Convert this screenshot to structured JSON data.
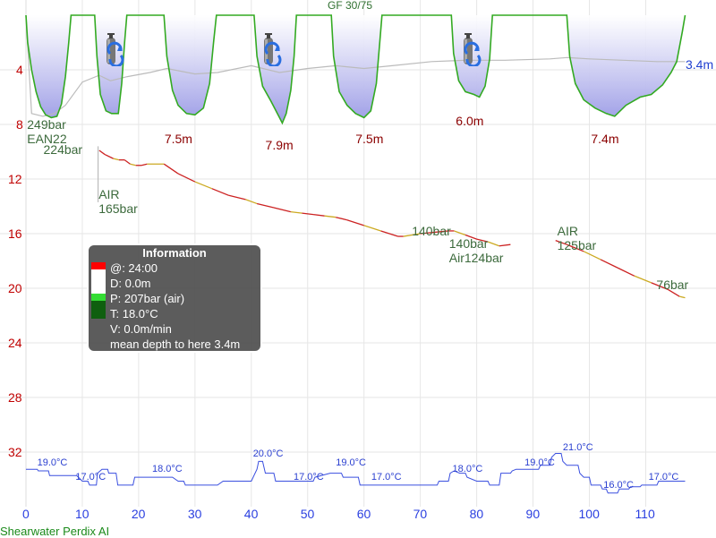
{
  "header": {
    "gradient_factors": "GF 30/75"
  },
  "footer": {
    "dive_computer": "Shearwater Perdix AI"
  },
  "info_box": {
    "title": "Information",
    "time": "@: 24:00",
    "depth": "D: 0.0m",
    "pressure": "P: 207bar (air)",
    "temperature": "T: 18.0°C",
    "velocity": "V: 0.0m/min",
    "mean_depth": "mean depth to here 3.4m"
  },
  "colors": {
    "grid": "#e6e6e6",
    "depth_profile": "#33aa22",
    "depth_fill_top": "#ffffff",
    "depth_fill_bottom": "#9c9ce6",
    "pressure_line": "#cc2222",
    "pressure_line_alt": "#ccaa22",
    "temperature_line": "#3a4fdf",
    "mean_depth_line": "#bbbbbb",
    "depth_axis": "#c00000",
    "time_axis": "#2a3fe0"
  },
  "icons": {
    "tank_change": "gas-tank-icon"
  },
  "chart_data": {
    "type": "line",
    "x_unit": "min",
    "y_unit": "m",
    "xlim": [
      0,
      117
    ],
    "ylim": [
      0,
      34
    ],
    "x_ticks": [
      0,
      10,
      20,
      30,
      40,
      50,
      60,
      70,
      80,
      90,
      100,
      110
    ],
    "y_ticks": [
      4,
      8,
      12,
      16,
      20,
      24,
      28,
      32
    ],
    "mean_depth_value": "3.4m",
    "depth_profile": {
      "name": "depth",
      "points": [
        [
          0,
          0
        ],
        [
          0.3,
          2
        ],
        [
          1,
          4
        ],
        [
          1.8,
          5.6
        ],
        [
          2.6,
          6.7
        ],
        [
          3.5,
          7.3
        ],
        [
          4.5,
          7.5
        ],
        [
          5.5,
          7.4
        ],
        [
          6.3,
          6.5
        ],
        [
          7,
          4.5
        ],
        [
          7.6,
          2
        ],
        [
          8,
          0
        ],
        [
          12.2,
          0
        ],
        [
          12.6,
          3
        ],
        [
          13.2,
          5.8
        ],
        [
          14.2,
          7
        ],
        [
          15.2,
          7.2
        ],
        [
          16.4,
          7.2
        ],
        [
          17,
          5
        ],
        [
          17.5,
          2
        ],
        [
          17.9,
          0
        ],
        [
          24.5,
          0
        ],
        [
          25,
          3
        ],
        [
          26,
          5.5
        ],
        [
          27,
          6.6
        ],
        [
          28.5,
          7.2
        ],
        [
          30,
          7.3
        ],
        [
          31.5,
          6.8
        ],
        [
          32.6,
          5
        ],
        [
          33.3,
          2
        ],
        [
          33.8,
          0
        ],
        [
          40.5,
          0
        ],
        [
          41,
          3
        ],
        [
          42,
          5.2
        ],
        [
          43.5,
          6.3
        ],
        [
          45,
          7.5
        ],
        [
          45.5,
          7.9
        ],
        [
          46.2,
          7.2
        ],
        [
          47,
          5.5
        ],
        [
          47.6,
          3
        ],
        [
          48,
          0
        ],
        [
          54.2,
          0
        ],
        [
          54.6,
          3
        ],
        [
          55.6,
          5.6
        ],
        [
          57,
          6.6
        ],
        [
          58.5,
          7.2
        ],
        [
          60,
          7.5
        ],
        [
          61.2,
          7
        ],
        [
          62.2,
          5
        ],
        [
          62.8,
          2
        ],
        [
          63.2,
          0
        ],
        [
          75.5,
          0
        ],
        [
          75.9,
          2.8
        ],
        [
          76.8,
          4.8
        ],
        [
          78,
          5.6
        ],
        [
          79.5,
          5.8
        ],
        [
          80.5,
          6
        ],
        [
          81.5,
          5.2
        ],
        [
          82.3,
          3.2
        ],
        [
          82.8,
          0
        ],
        [
          96,
          0
        ],
        [
          96.5,
          3
        ],
        [
          97.5,
          5
        ],
        [
          99,
          6.2
        ],
        [
          101,
          6.8
        ],
        [
          103,
          7.2
        ],
        [
          104.5,
          7.4
        ],
        [
          106.5,
          6.6
        ],
        [
          109,
          6
        ],
        [
          111,
          5.8
        ],
        [
          113,
          5.1
        ],
        [
          114.5,
          4.2
        ],
        [
          115.5,
          3.4
        ],
        [
          116.5,
          1.2
        ],
        [
          117,
          0
        ]
      ]
    },
    "mean_depth": {
      "name": "mean depth",
      "points": [
        [
          0,
          0
        ],
        [
          1,
          7.2
        ],
        [
          3,
          7.4
        ],
        [
          5,
          7.2
        ],
        [
          7,
          6.6
        ],
        [
          10,
          4.9
        ],
        [
          13,
          4.4
        ],
        [
          15,
          4.8
        ],
        [
          18,
          4.5
        ],
        [
          22,
          4.2
        ],
        [
          25,
          3.9
        ],
        [
          30,
          4.3
        ],
        [
          34,
          4.2
        ],
        [
          40,
          3.7
        ],
        [
          45,
          4.2
        ],
        [
          50,
          3.9
        ],
        [
          55,
          3.7
        ],
        [
          60,
          3.9
        ],
        [
          65,
          3.7
        ],
        [
          72,
          3.4
        ],
        [
          78,
          3.3
        ],
        [
          85,
          3.3
        ],
        [
          93,
          3.2
        ],
        [
          96,
          3.1
        ],
        [
          100,
          3.2
        ],
        [
          106,
          3.3
        ],
        [
          112,
          3.4
        ],
        [
          117,
          3.4
        ]
      ]
    },
    "pressure_segments": [
      [
        [
          13,
          9.9
        ],
        [
          14,
          10.2
        ],
        [
          15.5,
          10.5
        ],
        [
          16.5,
          10.6
        ],
        [
          17.5,
          10.6
        ],
        [
          18.5,
          10.9
        ],
        [
          19.5,
          11.0
        ],
        [
          20.5,
          11.0
        ],
        [
          21.5,
          10.9
        ],
        [
          24.5,
          10.9
        ],
        [
          27,
          11.6
        ],
        [
          30,
          12.2
        ],
        [
          33,
          12.7
        ],
        [
          36,
          13.2
        ],
        [
          39,
          13.5
        ],
        [
          41,
          13.8
        ],
        [
          44,
          14.1
        ],
        [
          47,
          14.4
        ],
        [
          49,
          14.5
        ],
        [
          51,
          14.6
        ],
        [
          53,
          14.7
        ],
        [
          55,
          14.8
        ],
        [
          57,
          15.0
        ],
        [
          60,
          15.4
        ],
        [
          63,
          15.8
        ],
        [
          66,
          16.2
        ],
        [
          67,
          16.2
        ],
        [
          70,
          16.0
        ],
        [
          75,
          15.8
        ],
        [
          76,
          15.8
        ],
        [
          78,
          16.1
        ],
        [
          80,
          16.4
        ],
        [
          82,
          16.6
        ],
        [
          84,
          16.9
        ],
        [
          86,
          16.8
        ]
      ],
      [
        [
          94,
          16.5
        ],
        [
          96,
          16.8
        ],
        [
          99,
          17.3
        ],
        [
          102,
          17.9
        ],
        [
          105,
          18.5
        ],
        [
          108,
          19.1
        ],
        [
          111,
          19.6
        ],
        [
          114,
          20.1
        ],
        [
          116,
          20.6
        ],
        [
          117,
          20.7
        ]
      ]
    ],
    "pressure_labels": [
      {
        "text": "249bar\nEAN22",
        "x": 0.2,
        "y": 7.5
      },
      {
        "text": "224bar",
        "x": 3.1,
        "y": 9.3
      },
      {
        "text": "AIR\n165bar",
        "x": 12.9,
        "y": 12.6
      },
      {
        "text": "140bar",
        "x": 68.5,
        "y": 15.3
      },
      {
        "text": "140bar\nAir124bar",
        "x": 75.1,
        "y": 16.2
      },
      {
        "text": "AIR\n125bar",
        "x": 94.3,
        "y": 15.3
      },
      {
        "text": "76bar",
        "x": 111.9,
        "y": 19.2
      }
    ],
    "max_depth_labels": [
      {
        "text": "7.5m",
        "x": 24.6,
        "y": 8.5
      },
      {
        "text": "7.9m",
        "x": 42.5,
        "y": 9.0
      },
      {
        "text": "7.5m",
        "x": 58.5,
        "y": 8.5
      },
      {
        "text": "6.0m",
        "x": 76.3,
        "y": 7.2
      },
      {
        "text": "7.4m",
        "x": 100.3,
        "y": 8.5
      }
    ],
    "tank_icons_x": [
      15.2,
      43.2,
      78.6
    ],
    "temperature": {
      "name": "temperature",
      "points": [
        [
          0,
          19
        ],
        [
          2,
          19
        ],
        [
          2.2,
          18.8
        ],
        [
          4,
          18.8
        ],
        [
          4.2,
          18.2
        ],
        [
          7,
          18.2
        ],
        [
          9,
          18.2
        ],
        [
          10,
          17.5
        ],
        [
          11,
          17.5
        ],
        [
          11.3,
          17
        ],
        [
          12,
          17
        ],
        [
          12.5,
          17
        ],
        [
          12.7,
          18.5
        ],
        [
          13.5,
          19
        ],
        [
          14.5,
          19
        ],
        [
          14.7,
          18.5
        ],
        [
          16,
          18.5
        ],
        [
          16.3,
          17
        ],
        [
          19,
          17
        ],
        [
          19.3,
          18
        ],
        [
          26,
          18
        ],
        [
          27,
          17.5
        ],
        [
          28,
          17.5
        ],
        [
          28.3,
          17
        ],
        [
          34,
          17
        ],
        [
          35,
          17.5
        ],
        [
          40,
          17.5
        ],
        [
          41,
          19
        ],
        [
          41.3,
          20
        ],
        [
          42,
          20
        ],
        [
          42.5,
          18.5
        ],
        [
          44,
          18.5
        ],
        [
          44.3,
          17.5
        ],
        [
          50,
          17.5
        ],
        [
          51,
          17.5
        ],
        [
          51.3,
          18
        ],
        [
          54,
          18.5
        ],
        [
          56,
          18.5
        ],
        [
          56.3,
          18
        ],
        [
          59,
          18
        ],
        [
          59.3,
          17
        ],
        [
          73,
          17
        ],
        [
          73.3,
          17.5
        ],
        [
          75,
          17.5
        ],
        [
          75.3,
          18.5
        ],
        [
          76,
          18.8
        ],
        [
          77,
          18.5
        ],
        [
          78,
          18.5
        ],
        [
          78.3,
          18
        ],
        [
          80,
          17.5
        ],
        [
          81,
          17.5
        ],
        [
          82,
          17.5
        ],
        [
          82.3,
          17
        ],
        [
          84,
          17
        ],
        [
          84.3,
          18.5
        ],
        [
          86,
          18.5
        ],
        [
          86.3,
          18.8
        ],
        [
          87,
          19
        ],
        [
          91,
          19
        ],
        [
          91.3,
          19.5
        ],
        [
          93,
          19.5
        ],
        [
          93.3,
          20.5
        ],
        [
          94,
          21
        ],
        [
          95,
          21
        ],
        [
          95.3,
          20
        ],
        [
          96,
          19.5
        ],
        [
          98,
          19.5
        ],
        [
          98.3,
          18.5
        ],
        [
          99,
          18
        ],
        [
          100,
          18
        ],
        [
          100.3,
          17
        ],
        [
          102,
          17
        ],
        [
          102.3,
          16.5
        ],
        [
          103,
          16.5
        ],
        [
          103.3,
          16
        ],
        [
          105,
          16
        ],
        [
          105.3,
          16.5
        ],
        [
          107,
          16.5
        ],
        [
          107.3,
          16.8
        ],
        [
          109,
          16.8
        ],
        [
          109.3,
          17
        ],
        [
          112,
          17
        ],
        [
          112.3,
          17.5
        ],
        [
          116,
          17.5
        ],
        [
          117,
          17.5
        ]
      ]
    },
    "temperature_labels": [
      {
        "text": "19.0°C",
        "x": 2,
        "y": 19
      },
      {
        "text": "17.0°C",
        "x": 8.8,
        "y": 17.2
      },
      {
        "text": "18.0°C",
        "x": 22.4,
        "y": 18.2
      },
      {
        "text": "20.0°C",
        "x": 40.3,
        "y": 20.2
      },
      {
        "text": "17.0°C",
        "x": 47.5,
        "y": 17.2
      },
      {
        "text": "19.0°C",
        "x": 55,
        "y": 19
      },
      {
        "text": "17.0°C",
        "x": 61.3,
        "y": 17.2
      },
      {
        "text": "18.0°C",
        "x": 75.7,
        "y": 18.2
      },
      {
        "text": "19.0°C",
        "x": 88.5,
        "y": 19
      },
      {
        "text": "21.0°C",
        "x": 95.3,
        "y": 21
      },
      {
        "text": "16.0°C",
        "x": 102.5,
        "y": 16.2
      },
      {
        "text": "17.0°C",
        "x": 110.5,
        "y": 17.2
      }
    ],
    "temperature_scale": {
      "temp_min": 16,
      "temp_max": 21,
      "depth_at_min": 35.0,
      "depth_at_max": 32.1
    }
  }
}
